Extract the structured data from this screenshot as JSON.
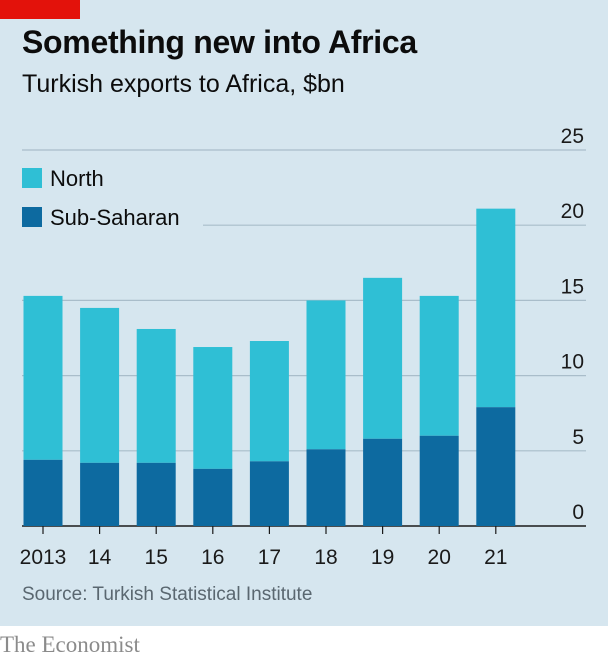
{
  "header": {
    "title": "Something new into Africa",
    "subtitle": "Turkish exports to Africa, $bn"
  },
  "footer": {
    "source": "Source: Turkish Statistical Institute",
    "brand": "The Economist"
  },
  "colors": {
    "north": "#2fbfd5",
    "sub_saharan": "#0d6aa0",
    "background": "#d6e6ef",
    "gridline": "#a9bdca",
    "accent": "#e3120b"
  },
  "chart_data": {
    "type": "bar",
    "stacked": true,
    "title": "Something new into Africa",
    "subtitle": "Turkish exports to Africa, $bn",
    "categories": [
      "2013",
      "14",
      "15",
      "16",
      "17",
      "18",
      "19",
      "20",
      "21"
    ],
    "series": [
      {
        "name": "Sub-Saharan",
        "values": [
          4.4,
          4.2,
          4.2,
          3.8,
          4.3,
          5.1,
          5.8,
          6.0,
          7.9
        ]
      },
      {
        "name": "North",
        "values": [
          10.9,
          10.3,
          8.9,
          8.1,
          8.0,
          9.9,
          10.7,
          9.3,
          13.2
        ]
      }
    ],
    "ylim": [
      0,
      25
    ],
    "yticks": [
      "0",
      "5",
      "10",
      "15",
      "20",
      "25"
    ],
    "y_axis_side": "right",
    "grid": true,
    "legend": "top-left"
  }
}
